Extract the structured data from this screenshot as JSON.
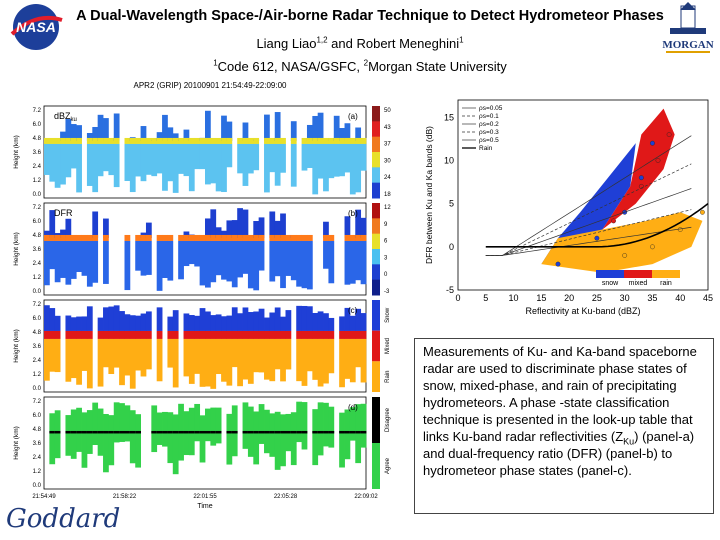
{
  "header": {
    "title": "A Dual-Wavelength Space-/Air-borne Radar Technique to Detect Hydrometeor Phases",
    "authors_text": "Liang Liao",
    "authors_sup1": "1,2",
    "authors_mid": " and Robert Meneghini",
    "authors_sup2": "1",
    "affil_sup1": "1",
    "affil_text1": "Code 612, NASA/GSFC, ",
    "affil_sup2": "2",
    "affil_text2": "Morgan State University"
  },
  "logos": {
    "nasa": "NASA",
    "morgan": "MORGAN",
    "goddard": "Goddard"
  },
  "left_figure": {
    "title": "APR2 (GRIP) 20100901 21:54:49-22:09:00",
    "panels": [
      {
        "label": "dBZ",
        "label_sub": "ku",
        "tag": "(a)",
        "ylabel": "Height (km)",
        "cbar_ticks": [
          "50",
          "43",
          "37",
          "30",
          "24",
          "18"
        ]
      },
      {
        "label": "DFR",
        "tag": "(b)",
        "ylabel": "Height (km)",
        "cbar_ticks": [
          "12",
          "9",
          "6",
          "3",
          "0",
          "-3"
        ]
      },
      {
        "label": "",
        "tag": "(c)",
        "ylabel": "Height (km)",
        "cbar_labels": [
          "Snow",
          "Mixed",
          "Rain"
        ]
      },
      {
        "label": "",
        "tag": "(d)",
        "ylabel": "Height (km)",
        "cbar_labels": [
          "Disagree",
          "Agree"
        ]
      }
    ],
    "yticks": [
      "7.2",
      "6.0",
      "4.8",
      "3.6",
      "2.4",
      "1.2",
      "0.0"
    ],
    "xticks": [
      "21:54:49",
      "21:58:22",
      "22:01:55",
      "22:05:28",
      "22:09:02"
    ],
    "xlabel": "Time",
    "colors": {
      "snow": "#1f3fd6",
      "mixed": "#e01818",
      "rain": "#ffae14",
      "agree": "#33d14a",
      "disagree": "#000000"
    }
  },
  "right_figure": {
    "xlabel": "Reflectivity at Ku-band (dBZ)",
    "ylabel": "DFR between Ku and Ka bands (dB)",
    "xticks": [
      "0",
      "5",
      "10",
      "15",
      "20",
      "25",
      "30",
      "35",
      "40",
      "45"
    ],
    "yticks": [
      "15",
      "10",
      "5",
      "0",
      "-5"
    ],
    "legend": [
      "ρs=0.05",
      "ρs=0.1",
      "ρs=0.2",
      "ρs=0.3",
      "ρs=0.5",
      "Rain"
    ],
    "phase_legend": [
      "snow",
      "mixed",
      "rain"
    ]
  },
  "chart_data": {
    "type": "scatter",
    "xlabel": "Reflectivity at Ku-band (dBZ)",
    "ylabel": "DFR between Ku and Ka bands (dB)",
    "xlim": [
      0,
      45
    ],
    "ylim": [
      -5,
      17
    ],
    "series": [
      {
        "name": "snow",
        "values": [
          [
            18,
            -2
          ],
          [
            25,
            1
          ],
          [
            30,
            4
          ],
          [
            33,
            8
          ],
          [
            35,
            12
          ]
        ]
      },
      {
        "name": "mixed",
        "values": [
          [
            28,
            3
          ],
          [
            33,
            7
          ],
          [
            36,
            10
          ],
          [
            38,
            13
          ]
        ]
      },
      {
        "name": "rain",
        "values": [
          [
            30,
            -1
          ],
          [
            35,
            0
          ],
          [
            40,
            2
          ],
          [
            44,
            4
          ]
        ]
      }
    ]
  },
  "textbox": {
    "p1": "Measurements of Ku- and Ka-band spaceborne radar are used to discriminate phase states of snow, mixed-phase, and rain of precipitating hydrometeors. A phase -state classification technique is presented in the look-up table that links Ku-band radar reflectivities (Z",
    "sub": "Ku",
    "p2": ") (panel-a)  and dual-frequency ratio (DFR) (panel-b) to hydrometeor phase states (panel-c)."
  }
}
